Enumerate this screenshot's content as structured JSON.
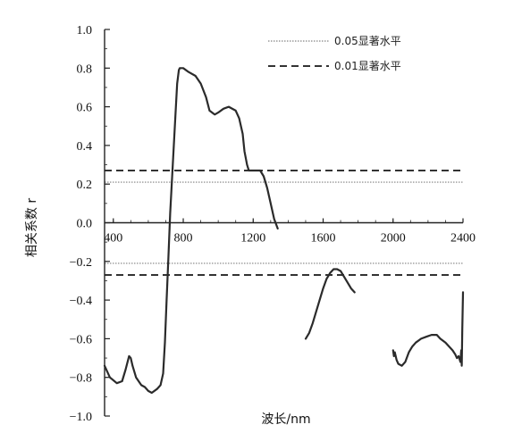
{
  "chart_data": {
    "type": "line",
    "title": "",
    "xlabel": "波长/nm",
    "ylabel": "相关系数 r",
    "xlim": [
      350,
      2400
    ],
    "ylim": [
      -1.0,
      1.0
    ],
    "x_ticks": [
      400,
      800,
      1200,
      1600,
      2000,
      2400
    ],
    "y_ticks": [
      1.0,
      0.8,
      0.6,
      0.4,
      0.2,
      0.0,
      -0.2,
      -0.4,
      -0.6,
      -0.8,
      -1.0
    ],
    "x_tick_labels": [
      "400",
      "800",
      "1200",
      "1600",
      "2000",
      "2400"
    ],
    "y_tick_labels": [
      "1.0",
      "0.8",
      "0.6",
      "0.4",
      "0.2",
      "0.0",
      "−0.2",
      "−0.4",
      "−0.6",
      "−0.8",
      "−1.0"
    ],
    "legend": {
      "placement": "top-right",
      "entries": [
        {
          "label": "0.05显著水平",
          "style": "dotted",
          "color": "#999999"
        },
        {
          "label": "0.01显著水平",
          "style": "dashed",
          "color": "#333333"
        }
      ]
    },
    "reference_lines": [
      {
        "name": "0.05显著水平",
        "values": [
          0.21,
          -0.21
        ],
        "style": "dotted",
        "color": "#999999"
      },
      {
        "name": "0.01显著水平",
        "values": [
          0.27,
          -0.27
        ],
        "style": "dashed",
        "color": "#333333"
      }
    ],
    "correlation_color": "#2b2b2b",
    "series": [
      {
        "segments": [
          {
            "x": [
              350,
              380,
              420,
              450,
              470,
              490,
              500,
              510,
              530,
              545,
              560,
              580,
              600,
              620,
              650,
              670,
              685,
              695,
              705,
              715,
              725,
              740,
              755,
              765,
              775,
              780,
              800,
              830,
              870,
              900,
              930,
              950,
              980,
              1000,
              1030,
              1060,
              1100,
              1120,
              1140,
              1150,
              1165,
              1175,
              1200,
              1220,
              1240,
              1260,
              1280,
              1300,
              1320,
              1340
            ],
            "y": [
              -0.74,
              -0.8,
              -0.83,
              -0.82,
              -0.76,
              -0.69,
              -0.7,
              -0.74,
              -0.8,
              -0.82,
              -0.84,
              -0.85,
              -0.87,
              -0.88,
              -0.86,
              -0.84,
              -0.78,
              -0.62,
              -0.4,
              -0.18,
              0.05,
              0.3,
              0.55,
              0.72,
              0.79,
              0.8,
              0.8,
              0.78,
              0.76,
              0.72,
              0.65,
              0.58,
              0.56,
              0.57,
              0.59,
              0.6,
              0.58,
              0.54,
              0.46,
              0.37,
              0.3,
              0.27,
              0.27,
              0.27,
              0.27,
              0.24,
              0.18,
              0.1,
              0.02,
              -0.03
            ]
          },
          {
            "x": [
              1500,
              1520,
              1540,
              1560,
              1580,
              1600,
              1620,
              1640,
              1660,
              1680,
              1700,
              1720,
              1740,
              1760,
              1780
            ],
            "y": [
              -0.6,
              -0.57,
              -0.52,
              -0.46,
              -0.4,
              -0.34,
              -0.29,
              -0.26,
              -0.24,
              -0.24,
              -0.25,
              -0.28,
              -0.31,
              -0.34,
              -0.36
            ]
          },
          {
            "x": [
              2000,
              2005,
              2010,
              2020,
              2030,
              2050,
              2070,
              2090,
              2110,
              2130,
              2160,
              2190,
              2220,
              2250,
              2270,
              2300,
              2320,
              2340,
              2355,
              2365,
              2375,
              2385,
              2390,
              2393,
              2396,
              2400
            ],
            "y": [
              -0.66,
              -0.69,
              -0.67,
              -0.71,
              -0.73,
              -0.74,
              -0.72,
              -0.67,
              -0.64,
              -0.62,
              -0.6,
              -0.59,
              -0.58,
              -0.58,
              -0.6,
              -0.62,
              -0.64,
              -0.66,
              -0.68,
              -0.7,
              -0.69,
              -0.72,
              -0.66,
              -0.74,
              -0.55,
              -0.36
            ]
          }
        ]
      }
    ]
  }
}
